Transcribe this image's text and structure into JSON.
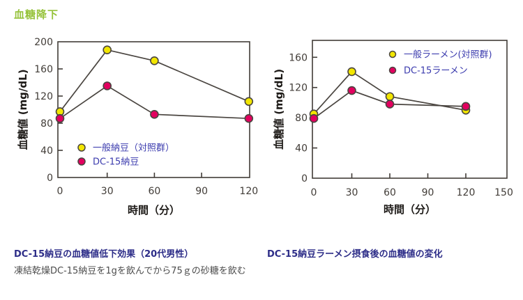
{
  "page": {
    "title": "血糖降下",
    "title_color": "#97c33c",
    "background": "#ffffff"
  },
  "style": {
    "axis_color": "#413c37",
    "line_color": "#4a4540",
    "legend_text_color": "#3b3bae",
    "caption_heading_color": "#2d2d88",
    "caption_body_color": "#4c4c4c",
    "marker_yellow": "#f2e600",
    "marker_red": "#e2005f"
  },
  "chart_data": [
    {
      "type": "line",
      "x": [
        0,
        30,
        60,
        120
      ],
      "series": [
        {
          "name": "一般納豆（対照群）",
          "color": "#f2e600",
          "values": [
            97,
            188,
            172,
            112
          ]
        },
        {
          "name": "DC-15納豆",
          "color": "#e2005f",
          "values": [
            87,
            135,
            93,
            87
          ]
        }
      ],
      "title": "",
      "xlabel": "時間（分）",
      "ylabel": "血糖値 (mg/dL)",
      "xticks": [
        0,
        30,
        60,
        90,
        120
      ],
      "yticks": [
        0,
        40,
        80,
        120,
        160,
        200
      ],
      "xlim": [
        0,
        122
      ],
      "ylim": [
        0,
        200
      ],
      "grid": false,
      "legend_position": "inside-bottom-left"
    },
    {
      "type": "line",
      "x": [
        0,
        30,
        60,
        120
      ],
      "series": [
        {
          "name": "一般ラーメン(対照群)",
          "color": "#f2e600",
          "values": [
            85,
            141,
            108,
            90
          ]
        },
        {
          "name": "DC-15ラーメン",
          "color": "#e2005f",
          "values": [
            79,
            116,
            98,
            95
          ]
        }
      ],
      "title": "",
      "xlabel": "時間（分）",
      "ylabel": "血糖値 (mg/dL)",
      "xticks": [
        0,
        30,
        60,
        90,
        120,
        150
      ],
      "yticks": [
        0,
        40,
        80,
        120,
        160
      ],
      "xlim": [
        0,
        157
      ],
      "ylim": [
        0,
        182
      ],
      "grid": false,
      "legend_position": "inside-top-right"
    }
  ],
  "captions": [
    {
      "heading": "DC-15納豆の血糖値低下効果（20代男性）",
      "body": "凍結乾燥DC-15納豆を1gを飲んでから75ｇの砂糖を飲む"
    },
    {
      "heading": "DC-15納豆ラーメン摂食後の血糖値の変化",
      "body": ""
    }
  ]
}
